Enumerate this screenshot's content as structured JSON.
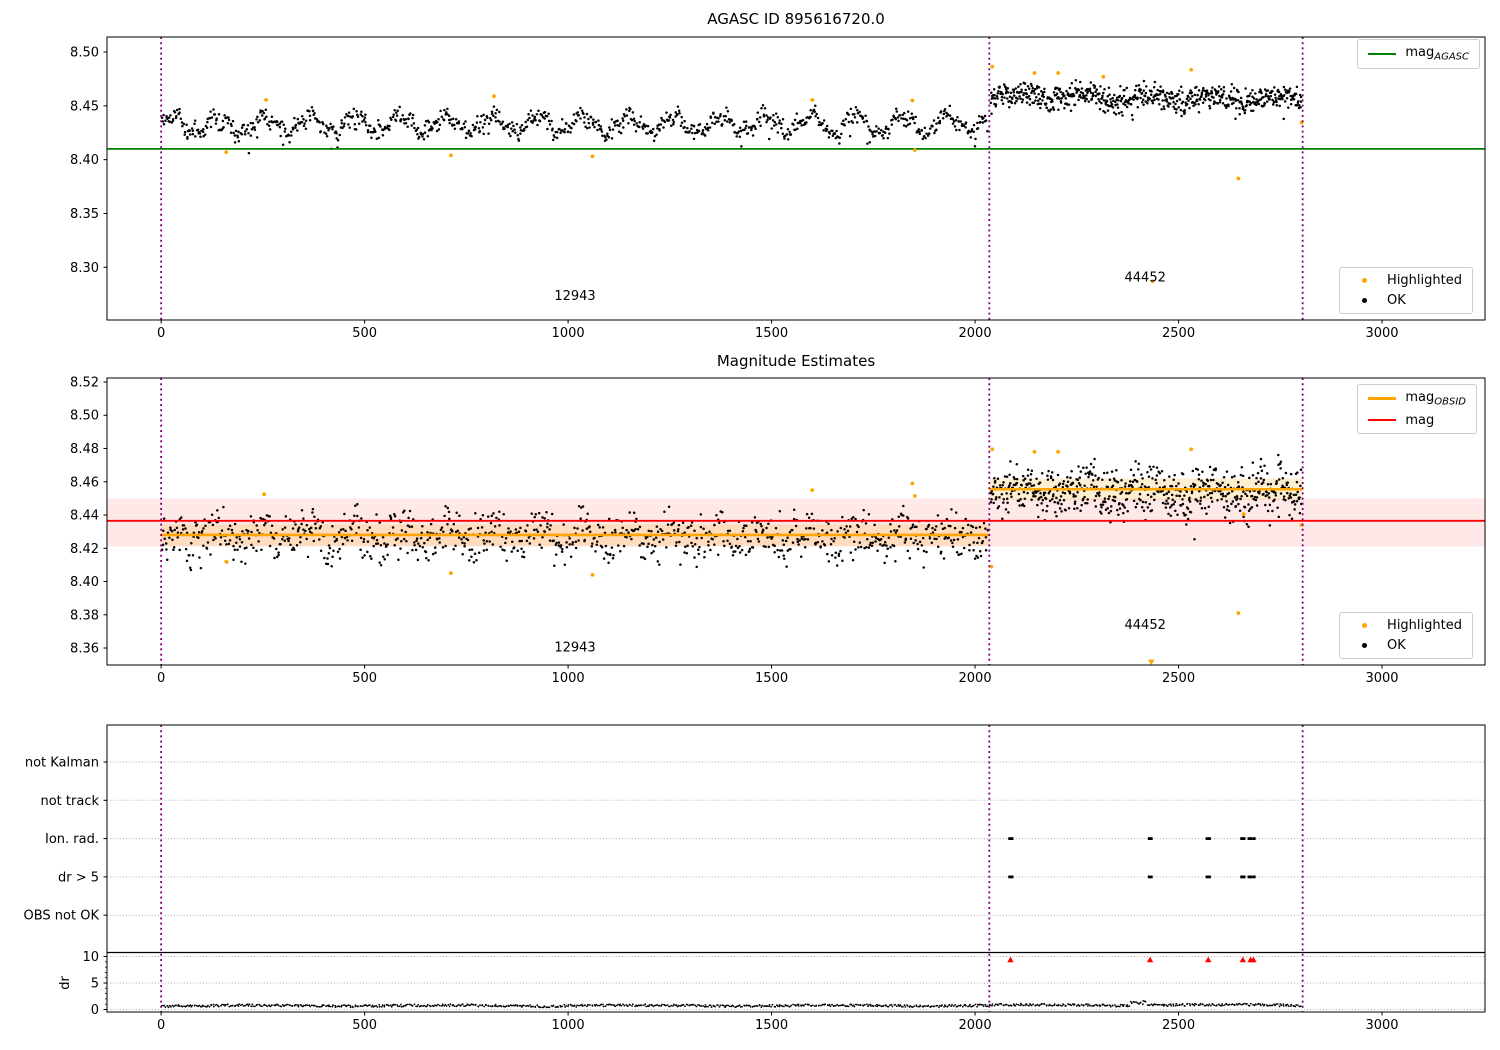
{
  "colors": {
    "ok": "#000000",
    "highlighted": "#ffa500",
    "mag_agasc_line": "#008000",
    "mag_obsid_line": "#ffa500",
    "mag_line": "#ff0000",
    "mag_band": "rgba(255,0,0,0.09)",
    "obsid_band": "rgba(255,166,0,0.18)",
    "vline": "#800080",
    "grid": "#aaaaaa",
    "triangle": "#ff0000",
    "spine": "#000000"
  },
  "chart_data": [
    {
      "type": "scatter",
      "title": "AGASC ID 895616720.0",
      "xlim": [
        -133,
        3253
      ],
      "ylim": [
        8.251,
        8.514
      ],
      "xtick_labels": [
        "0",
        "500",
        "1000",
        "1500",
        "2000",
        "2500",
        "3000"
      ],
      "xtick_vals": [
        0,
        500,
        1000,
        1500,
        2000,
        2500,
        3000
      ],
      "ytick_labels": [
        "8.50",
        "8.45",
        "8.40",
        "8.35",
        "8.30"
      ],
      "ytick_vals": [
        8.5,
        8.45,
        8.4,
        8.35,
        8.3
      ],
      "agasc_mag": 8.41,
      "vlines": [
        0,
        2035,
        2805
      ],
      "annotations": [
        {
          "text": "12943",
          "x": 1017,
          "y": 8.2694
        },
        {
          "text": "44452",
          "x": 2418,
          "y": 8.287
        }
      ],
      "ok_segments": [
        {
          "x0": 2,
          "x1": 2032,
          "n": 1000,
          "base": 8.433,
          "wave1": [
            0.0072,
            112,
            0.0
          ],
          "wave2": [
            0.0033,
            41,
            1.3
          ],
          "noise": 0.004,
          "dip_p": 0.025,
          "dip": 0.011,
          "min": 8.402,
          "max": 8.467
        },
        {
          "x0": 2038,
          "x1": 2803,
          "n": 650,
          "base": 8.46,
          "slope": -5.5e-06,
          "wave1": [
            0.003,
            160,
            0.5
          ],
          "wave2": [
            0.002,
            47,
            2.1
          ],
          "noise": 0.0058,
          "dip_p": 0.02,
          "dip": 0.012,
          "min": 8.425,
          "max": 8.4875
        }
      ],
      "highlighted": [
        [
          160,
          8.407
        ],
        [
          258,
          8.4555
        ],
        [
          712,
          8.404
        ],
        [
          818,
          8.459
        ],
        [
          1060,
          8.403
        ],
        [
          1600,
          8.4555
        ],
        [
          1846,
          8.455
        ],
        [
          1852,
          8.409
        ],
        [
          2042,
          8.4865
        ],
        [
          2146,
          8.4805
        ],
        [
          2204,
          8.4805
        ],
        [
          2315,
          8.477
        ],
        [
          2531,
          8.4835
        ],
        [
          2436,
          8.287
        ],
        [
          2647,
          8.3825
        ],
        [
          2802,
          8.4345
        ]
      ],
      "legend_lines": [
        {
          "main": "mag",
          "sub": "AGASC",
          "color": "#008000"
        }
      ],
      "legend_markers": [
        {
          "label": "Highlighted",
          "color": "#ffa500"
        },
        {
          "label": "OK",
          "color": "#000000"
        }
      ]
    },
    {
      "type": "scatter",
      "title": "Magnitude Estimates",
      "xlim": [
        -133,
        3253
      ],
      "ylim": [
        8.3498,
        8.5224
      ],
      "xtick_labels": [
        "0",
        "500",
        "1000",
        "1500",
        "2000",
        "2500",
        "3000"
      ],
      "xtick_vals": [
        0,
        500,
        1000,
        1500,
        2000,
        2500,
        3000
      ],
      "ytick_labels": [
        "8.52",
        "8.50",
        "8.48",
        "8.46",
        "8.44",
        "8.42",
        "8.40",
        "8.38",
        "8.36"
      ],
      "ytick_vals": [
        8.52,
        8.5,
        8.48,
        8.46,
        8.44,
        8.42,
        8.4,
        8.38,
        8.36
      ],
      "mag": 8.4365,
      "mag_band": [
        8.421,
        8.45
      ],
      "obsid_segments": [
        {
          "x0": 0,
          "x1": 2035,
          "mag": 8.428,
          "band": [
            8.4215,
            8.4345
          ]
        },
        {
          "x0": 2035,
          "x1": 2805,
          "mag": 8.4555,
          "band": [
            8.449,
            8.462
          ]
        }
      ],
      "vlines": [
        0,
        2035,
        2805
      ],
      "annotations": [
        {
          "text": "12943",
          "x": 1017,
          "y": 8.358
        },
        {
          "text": "44452",
          "x": 2418,
          "y": 8.3714
        }
      ],
      "ok_segments": [
        {
          "x0": 2,
          "x1": 2032,
          "n": 1000,
          "base": 8.4272,
          "wave1": [
            0.004,
            112,
            0.0
          ],
          "wave2": [
            0.0025,
            43,
            0.9
          ],
          "noise": 0.0066,
          "dip_p": 0.02,
          "dip": 0.01,
          "min": 8.401,
          "max": 8.462
        },
        {
          "x0": 2038,
          "x1": 2803,
          "n": 650,
          "base": 8.456,
          "slope": -3.5e-06,
          "wave1": [
            0.003,
            150,
            0.4
          ],
          "wave2": [
            0.002,
            51,
            2.0
          ],
          "noise": 0.0072,
          "dip_p": 0.02,
          "dip": 0.012,
          "min": 8.415,
          "max": 8.4825
        }
      ],
      "highlighted": [
        [
          160,
          8.412
        ],
        [
          253,
          8.4525
        ],
        [
          712,
          8.405
        ],
        [
          1060,
          8.404
        ],
        [
          1600,
          8.455
        ],
        [
          1846,
          8.459
        ],
        [
          1852,
          8.4515
        ],
        [
          2040,
          8.409
        ],
        [
          2042,
          8.4795
        ],
        [
          2146,
          8.478
        ],
        [
          2204,
          8.478
        ],
        [
          2531,
          8.4795
        ],
        [
          2660,
          8.4405
        ],
        [
          2647,
          8.381
        ],
        [
          2802,
          8.434
        ]
      ],
      "triangle_markers": [
        [
          2433,
          8.3515
        ]
      ],
      "legend_lines": [
        {
          "main": "mag",
          "sub": "OBSID",
          "color": "#ffa500"
        },
        {
          "main": "mag",
          "sub": "",
          "color": "#ff0000"
        }
      ],
      "legend_markers": [
        {
          "label": "Highlighted",
          "color": "#ffa500"
        },
        {
          "label": "OK",
          "color": "#000000"
        }
      ]
    },
    {
      "type": "flags",
      "flag_labels": [
        "not Kalman",
        "not track",
        "Ion. rad.",
        "dr > 5",
        "OBS not OK"
      ],
      "dr_label": "dr",
      "dr_tick_labels": [
        "10",
        "5",
        "0"
      ],
      "dr_tick_vals": [
        10,
        5,
        0
      ],
      "dr_solid_line": 10,
      "xlim": [
        -133,
        3253
      ],
      "xtick_labels": [
        "0",
        "500",
        "1000",
        "1500",
        "2000",
        "2500",
        "3000"
      ],
      "xtick_vals": [
        0,
        500,
        1000,
        1500,
        2000,
        2500,
        3000
      ],
      "vlines": [
        0,
        2035,
        2805
      ],
      "ion_rad_x": [
        2085,
        2091,
        2428,
        2433,
        2570,
        2576,
        2655,
        2661,
        2673,
        2679,
        2686
      ],
      "dr_gt5_x": [
        2085,
        2091,
        2428,
        2433,
        2570,
        2576,
        2655,
        2661,
        2673,
        2679,
        2686
      ],
      "triangle_x": [
        2087,
        2430,
        2573,
        2658,
        2677,
        2684
      ],
      "triangle_dr": 9.4,
      "dr_trace": {
        "x0": 3,
        "x1": 2803,
        "n": 900,
        "base": 0.38,
        "noise": 0.45
      }
    }
  ]
}
